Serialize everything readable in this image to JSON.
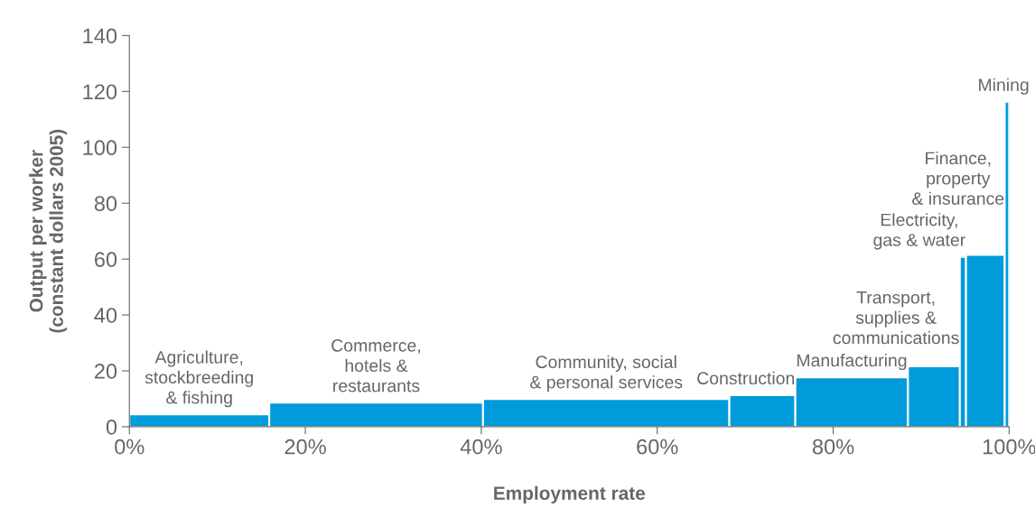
{
  "chart_data": {
    "type": "histogram",
    "xlabel": "Employment rate",
    "ylabel": "Output per worker\n(constant dollars 2005)",
    "bins": [
      0,
      15.9,
      40.2,
      68.2,
      75.7,
      88.5,
      94.4,
      95.1,
      99.5,
      100
    ],
    "values": [
      4.4,
      8.6,
      9.9,
      11.3,
      17.7,
      21.6,
      60.8,
      61.5,
      116.3
    ],
    "color": "#009bdb",
    "xlim": [
      0,
      100
    ],
    "ylim": [
      0,
      140
    ],
    "xticks": [
      {
        "value": 0,
        "label": "0%"
      },
      {
        "value": 20,
        "label": "20%"
      },
      {
        "value": 40,
        "label": "40%"
      },
      {
        "value": 60,
        "label": "60%"
      },
      {
        "value": 80,
        "label": "80%"
      },
      {
        "value": 100,
        "label": "100%"
      }
    ],
    "yticks": [
      0,
      20,
      40,
      60,
      80,
      100,
      120,
      140
    ],
    "annotations": [
      "Agriculture,\nstockbreeding\n& fishing",
      "Commerce,\nhotels &\nrestaurants",
      "Community, social\n& personal services",
      "Construction",
      "Manufacturing",
      "Transport,\nsupplies &\ncommunications",
      "Electricity,\ngas & water",
      "Finance,\nproperty\n& insurance",
      "Mining"
    ]
  }
}
